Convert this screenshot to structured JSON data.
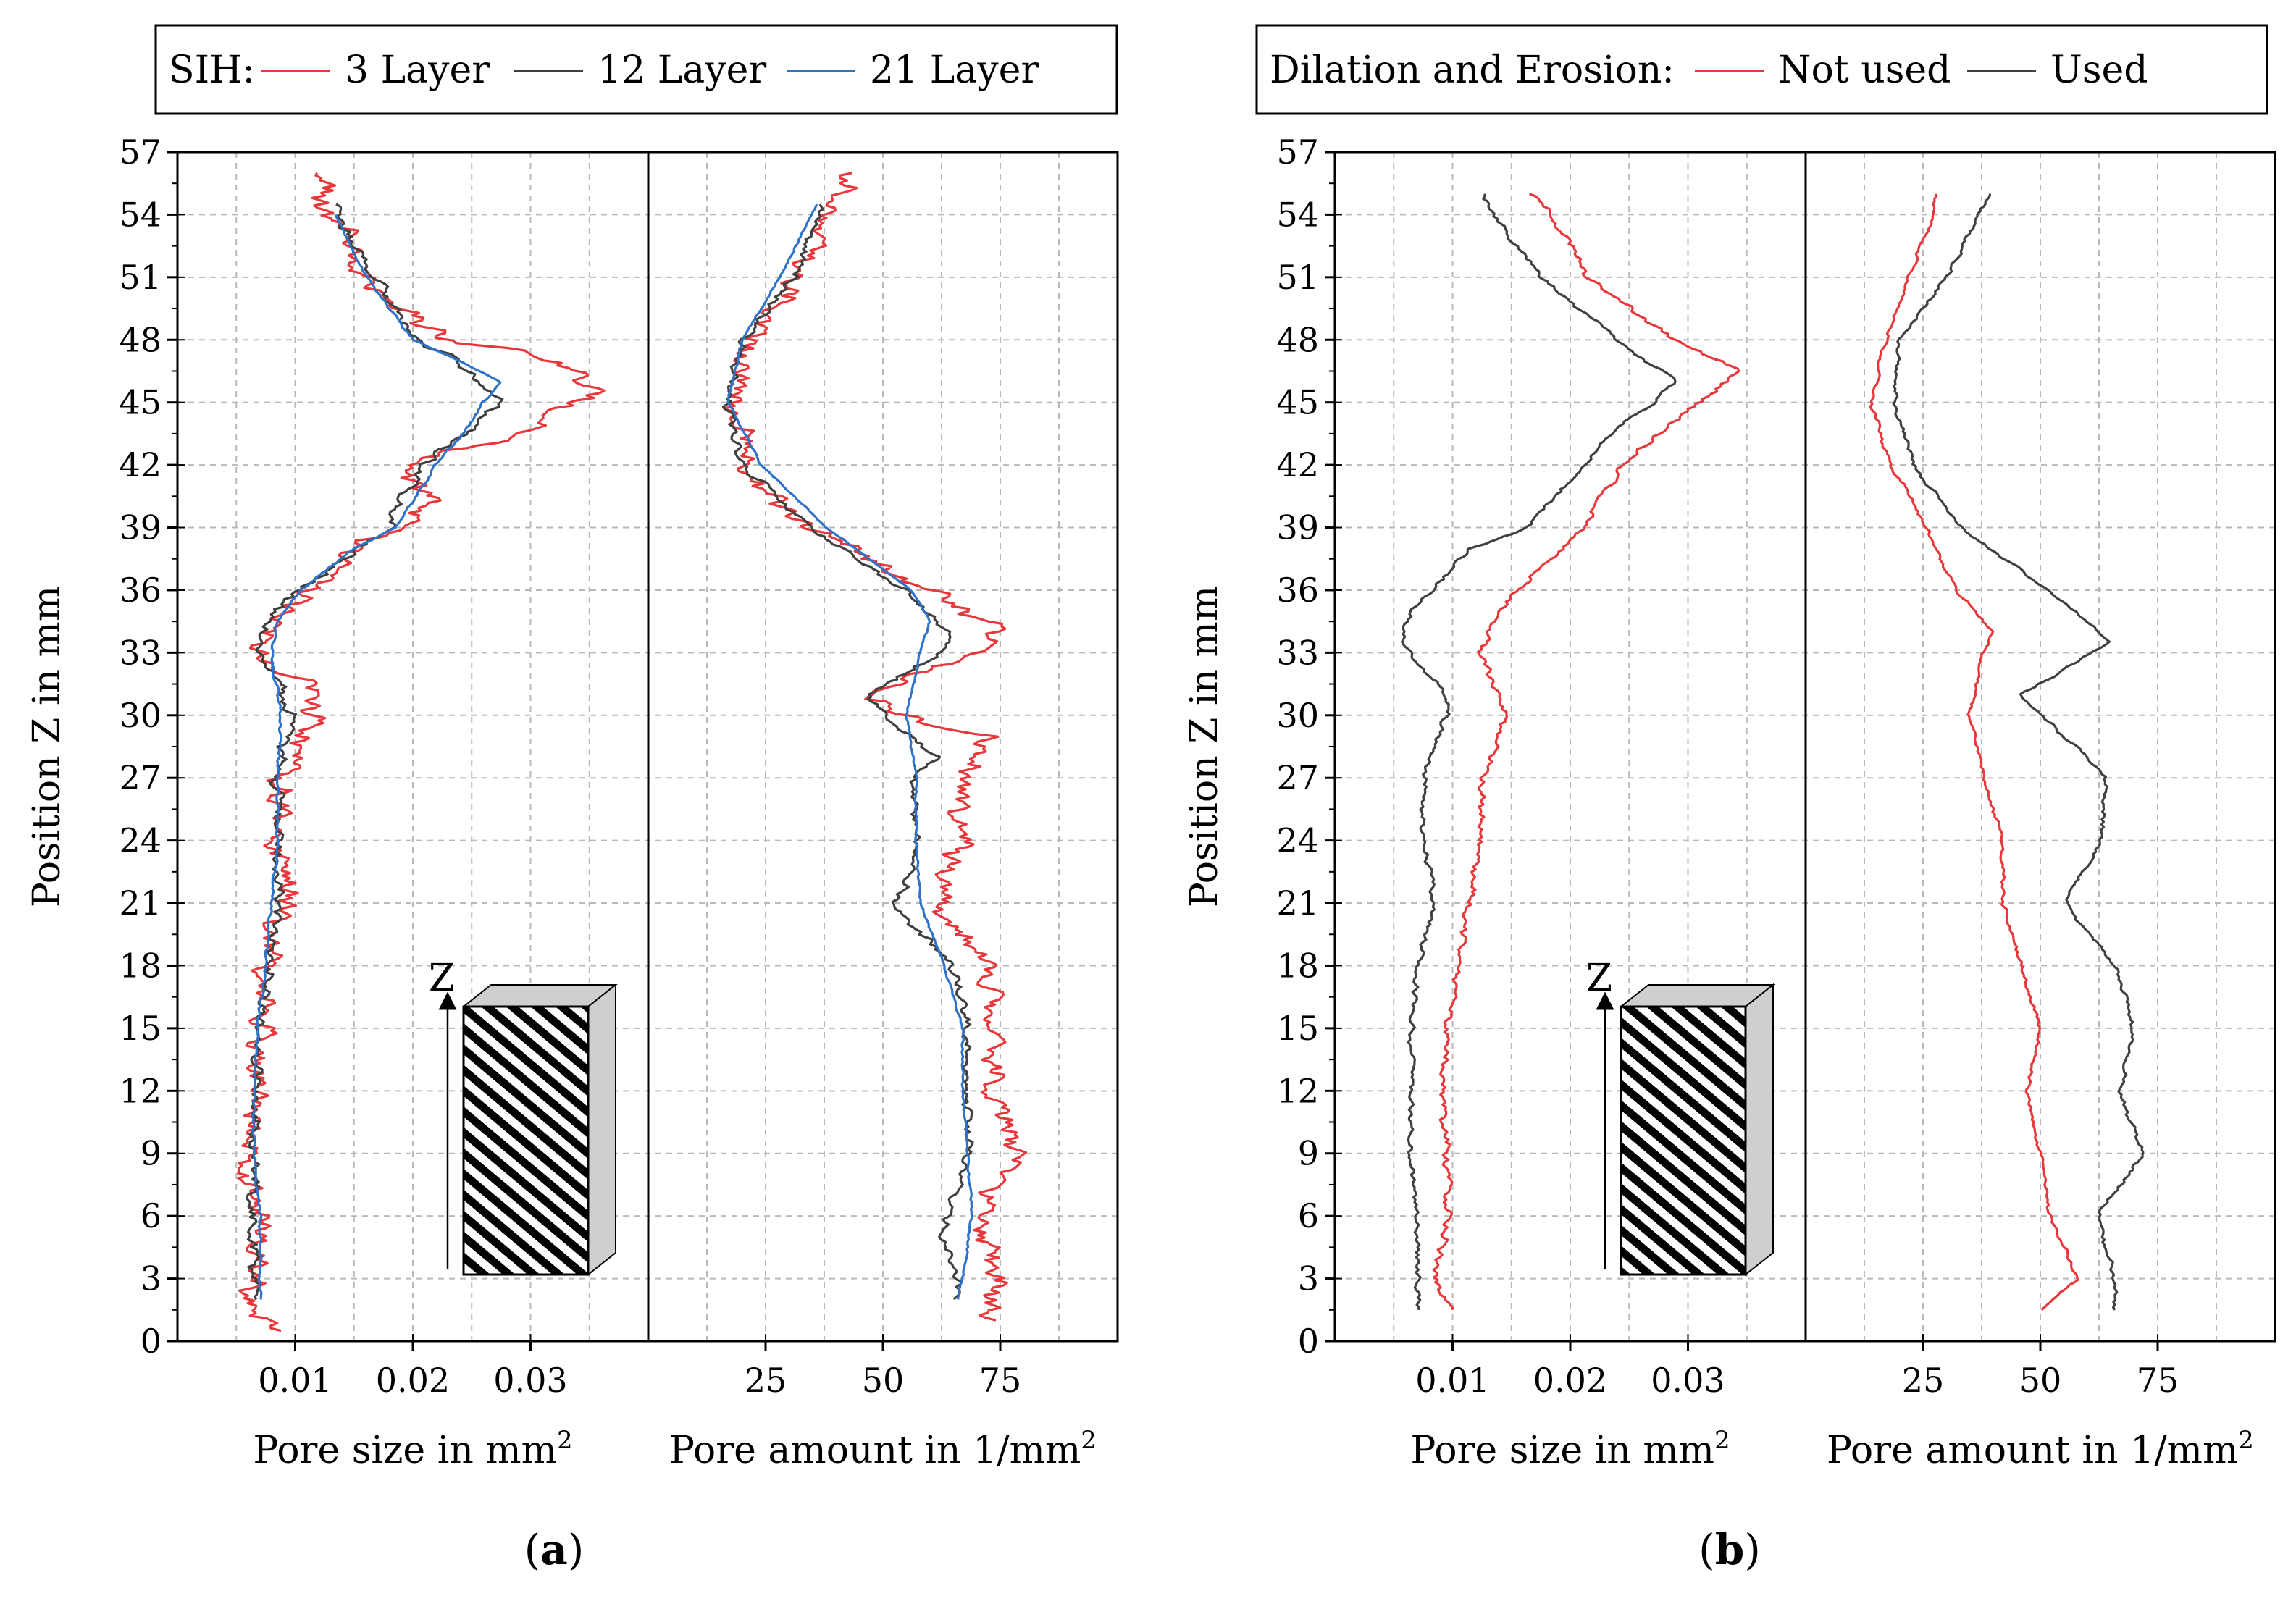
{
  "chart_data": [
    {
      "id": "a",
      "type": "line",
      "caption_label": "a",
      "legend": {
        "prefix": "SIH:",
        "placement": "top"
      },
      "ylabel": "Position Z in mm",
      "ylim": [
        0,
        57
      ],
      "yticks": [
        0,
        3,
        6,
        9,
        12,
        15,
        18,
        21,
        24,
        27,
        30,
        33,
        36,
        39,
        42,
        45,
        48,
        51,
        54,
        57
      ],
      "panels": [
        {
          "xlabel": "Pore size in mm",
          "xlabel_sup": "2",
          "xlim": [
            0,
            0.04
          ],
          "xticks": [
            0.01,
            0.02,
            0.03
          ],
          "xtick_labels": [
            "0.01",
            "0.02",
            "0.03"
          ],
          "series": [
            {
              "name": "3 Layer",
              "color": "#e8383b",
              "noise": 0.0014,
              "z": [
                0.5,
                1.5,
                3,
                6,
                9,
                12,
                15,
                18,
                21,
                24,
                27,
                30,
                31.5,
                33,
                34.5,
                36,
                39,
                40.5,
                42,
                43.5,
                45,
                45.5,
                46.5,
                47.5,
                48,
                49.5,
                51,
                54,
                56
              ],
              "v": [
                0.0085,
                0.0055,
                0.0065,
                0.007,
                0.006,
                0.0065,
                0.007,
                0.0075,
                0.0095,
                0.0085,
                0.0085,
                0.0115,
                0.011,
                0.007,
                0.0085,
                0.011,
                0.018,
                0.022,
                0.0185,
                0.03,
                0.034,
                0.036,
                0.034,
                0.03,
                0.023,
                0.019,
                0.0155,
                0.013,
                0.0125
              ]
            },
            {
              "name": "12 Layer",
              "color": "#404040",
              "noise": 0.0006,
              "z": [
                2,
                3,
                6,
                9,
                12,
                15,
                18,
                21,
                24,
                27,
                30,
                31.5,
                33,
                34.5,
                36,
                39,
                42,
                44,
                45,
                46,
                47,
                48,
                51,
                54.5
              ],
              "v": [
                0.0065,
                0.0065,
                0.0065,
                0.0065,
                0.0065,
                0.007,
                0.0075,
                0.0085,
                0.0085,
                0.0085,
                0.0095,
                0.009,
                0.007,
                0.0075,
                0.0105,
                0.018,
                0.021,
                0.0255,
                0.0275,
                0.0255,
                0.024,
                0.02,
                0.017,
                0.013
              ]
            },
            {
              "name": "21 Layer",
              "color": "#2f73c9",
              "noise": 0.00015,
              "z": [
                2,
                3,
                6,
                9,
                12,
                15,
                18,
                21,
                24,
                27,
                30,
                33,
                34.5,
                36,
                38,
                39,
                42,
                44,
                45,
                46,
                47,
                48,
                51,
                54
              ],
              "v": [
                0.007,
                0.007,
                0.007,
                0.0065,
                0.0065,
                0.0068,
                0.0075,
                0.008,
                0.0085,
                0.0085,
                0.0088,
                0.008,
                0.0085,
                0.0105,
                0.015,
                0.0185,
                0.022,
                0.025,
                0.026,
                0.0275,
                0.024,
                0.02,
                0.016,
                0.0135
              ]
            }
          ]
        },
        {
          "xlabel": "Pore amount in 1/mm",
          "xlabel_sup": "2",
          "xlim": [
            0,
            100
          ],
          "xticks": [
            25,
            50,
            75
          ],
          "xtick_labels": [
            "25",
            "50",
            "75"
          ],
          "series": [
            {
              "name": "3 Layer",
              "color": "#e8383b",
              "noise": 3.2,
              "z": [
                1,
                3,
                6,
                9,
                12,
                15,
                18,
                19,
                21,
                24,
                27,
                29,
                30,
                31,
                33,
                34,
                36,
                39,
                42,
                45,
                48,
                51,
                54,
                56
              ],
              "v": [
                72,
                75,
                70,
                78,
                74,
                72,
                74,
                68,
                62,
                67,
                68,
                72,
                55,
                45,
                70,
                75,
                60,
                35,
                20,
                18,
                22,
                32,
                40,
                42
              ]
            },
            {
              "name": "12 Layer",
              "color": "#404040",
              "noise": 1.2,
              "z": [
                2,
                3,
                5,
                6,
                9,
                12,
                15,
                18,
                21,
                22,
                24,
                27,
                28,
                30,
                31,
                33,
                34,
                36,
                39,
                42,
                45,
                48,
                51,
                54.5
              ],
              "v": [
                65,
                66,
                62,
                64,
                68,
                68,
                68,
                65,
                52,
                55,
                57,
                57,
                62,
                50,
                47,
                62,
                64,
                55,
                34,
                20,
                17,
                20,
                31,
                37
              ]
            },
            {
              "name": "21 Layer",
              "color": "#2f73c9",
              "noise": 0.25,
              "z": [
                2,
                3,
                6,
                9,
                12,
                15,
                18,
                21,
                24,
                27,
                30,
                33,
                34.5,
                36,
                39,
                42,
                45,
                48,
                51,
                54.5
              ],
              "v": [
                66,
                67,
                69,
                68,
                67,
                67,
                63,
                58,
                57,
                57,
                55,
                58,
                60,
                56,
                38,
                24,
                17,
                20,
                28,
                36
              ]
            }
          ]
        }
      ]
    },
    {
      "id": "b",
      "type": "line",
      "caption_label": "b",
      "legend": {
        "prefix": "Dilation and Erosion:",
        "placement": "top"
      },
      "ylabel": "Position Z in mm",
      "ylim": [
        0,
        57
      ],
      "yticks": [
        0,
        3,
        6,
        9,
        12,
        15,
        18,
        21,
        24,
        27,
        30,
        33,
        36,
        39,
        42,
        45,
        48,
        51,
        54,
        57
      ],
      "panels": [
        {
          "xlabel": "Pore size in mm",
          "xlabel_sup": "2",
          "xlim": [
            0,
            0.04
          ],
          "xticks": [
            0.01,
            0.02,
            0.03
          ],
          "xtick_labels": [
            "0.01",
            "0.02",
            "0.03"
          ],
          "series": [
            {
              "name": "Not used",
              "color": "#e8383b",
              "noise": 0.0004,
              "z": [
                1.5,
                3,
                6,
                9,
                12,
                15,
                18,
                21,
                24,
                27,
                30,
                33,
                34.5,
                36,
                39,
                42,
                44,
                45,
                46.5,
                48,
                51,
                54,
                55
              ],
              "v": [
                0.01,
                0.0085,
                0.0095,
                0.0095,
                0.009,
                0.0095,
                0.0105,
                0.0115,
                0.0125,
                0.0125,
                0.0145,
                0.0125,
                0.0135,
                0.0155,
                0.021,
                0.0245,
                0.0285,
                0.031,
                0.0345,
                0.029,
                0.0215,
                0.0185,
                0.0165
              ]
            },
            {
              "name": "Used",
              "color": "#404040",
              "noise": 0.0003,
              "z": [
                1.5,
                3,
                6,
                9,
                12,
                15,
                18,
                21,
                24,
                27,
                30,
                31,
                33.5,
                35,
                38,
                39,
                42,
                44,
                45,
                46,
                48,
                51,
                54,
                55
              ],
              "v": [
                0.007,
                0.007,
                0.007,
                0.0065,
                0.0065,
                0.0065,
                0.007,
                0.0085,
                0.0075,
                0.0075,
                0.0095,
                0.0095,
                0.0055,
                0.0065,
                0.0115,
                0.0165,
                0.021,
                0.0245,
                0.027,
                0.029,
                0.024,
                0.0175,
                0.0135,
                0.0125
              ]
            }
          ]
        },
        {
          "xlabel": "Pore amount in 1/mm",
          "xlabel_sup": "2",
          "xlim": [
            0,
            100
          ],
          "xticks": [
            25,
            50,
            75
          ],
          "xtick_labels": [
            "25",
            "50",
            "75"
          ],
          "series": [
            {
              "name": "Not used",
              "color": "#e8383b",
              "noise": 0.5,
              "z": [
                1.5,
                3,
                6,
                9,
                12,
                15,
                18,
                21,
                24,
                27,
                30,
                33,
                34,
                36,
                39,
                42,
                45,
                48,
                51,
                54,
                55
              ],
              "v": [
                50,
                58,
                52,
                50,
                47,
                50,
                46,
                42,
                42,
                38,
                35,
                38,
                40,
                32,
                26,
                18,
                14,
                17,
                22,
                27,
                28
              ]
            },
            {
              "name": "Used",
              "color": "#404040",
              "noise": 0.6,
              "z": [
                1.5,
                3,
                6,
                9,
                12,
                15,
                18,
                21,
                24,
                27,
                28,
                30,
                31,
                33.5,
                36,
                39,
                42,
                45,
                48,
                51,
                54,
                55
              ],
              "v": [
                66,
                66,
                62,
                72,
                67,
                70,
                66,
                55,
                63,
                64,
                60,
                50,
                46,
                65,
                52,
                33,
                23,
                19,
                20,
                30,
                37,
                39
              ]
            }
          ]
        }
      ]
    }
  ],
  "inset": {
    "axis_label": "Z"
  }
}
